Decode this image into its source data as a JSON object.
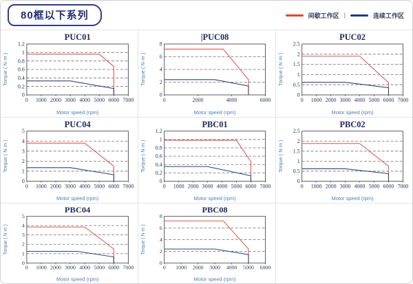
{
  "header": {
    "title": "80框以下系列",
    "legend": {
      "intermittent": "间歇工作区",
      "separator": "|",
      "continuous": "连续工作区",
      "intermittent_color": "#e8432a",
      "continuous_color": "#1f3d7a"
    }
  },
  "chart_data": [
    {
      "type": "line",
      "title": "PUC01",
      "title_prefix": "",
      "xlabel": "Motor speed (rpm)",
      "ylabel": "Torque ( N·m )",
      "xlim": [
        0,
        7000
      ],
      "xticks": [
        0,
        1000,
        2000,
        3000,
        4000,
        5000,
        6000,
        7000
      ],
      "ylim": [
        0,
        1.2
      ],
      "yticks": [
        0,
        0.2,
        0.4,
        0.6,
        0.8,
        1,
        1.2
      ],
      "grid": "horizontal-dashed",
      "series": [
        {
          "key": "intermittent",
          "name": "间歇工作区",
          "color": "#e2564a",
          "points": [
            [
              0,
              0.96
            ],
            [
              5000,
              0.96
            ],
            [
              6000,
              0.67
            ],
            [
              6000,
              0
            ]
          ]
        },
        {
          "key": "continuous",
          "name": "连续工作区",
          "color": "#2e4482",
          "points": [
            [
              0,
              0.33
            ],
            [
              3000,
              0.33
            ],
            [
              6000,
              0.15
            ],
            [
              6000,
              0
            ]
          ]
        }
      ]
    },
    {
      "type": "line",
      "title": "PUC08",
      "title_prefix": "|",
      "xlabel": "Motor speed (rpm)",
      "ylabel": "Torque ( N·m )",
      "xlim": [
        0,
        6000
      ],
      "xticks": [
        0,
        2000,
        4000,
        6000
      ],
      "ylim": [
        0,
        8
      ],
      "yticks": [
        0,
        2,
        4,
        6,
        8
      ],
      "grid": "horizontal-dashed",
      "series": [
        {
          "key": "intermittent",
          "name": "间歇工作区",
          "color": "#e2564a",
          "points": [
            [
              0,
              7.2
            ],
            [
              3500,
              7.2
            ],
            [
              5000,
              2.4
            ],
            [
              5000,
              0
            ]
          ]
        },
        {
          "key": "continuous",
          "name": "连续工作区",
          "color": "#2e4482",
          "points": [
            [
              0,
              2.4
            ],
            [
              3000,
              2.4
            ],
            [
              5000,
              1.4
            ],
            [
              5000,
              0
            ]
          ]
        }
      ]
    },
    {
      "type": "line",
      "title": "PUC02",
      "title_prefix": "",
      "xlabel": "Motor speed (rpm)",
      "ylabel": "Torque ( N·m )",
      "xlim": [
        0,
        7000
      ],
      "xticks": [
        0,
        1000,
        2000,
        3000,
        4000,
        5000,
        6000,
        7000
      ],
      "ylim": [
        0,
        2.5
      ],
      "yticks": [
        0,
        0.5,
        1,
        1.5,
        2,
        2.5
      ],
      "grid": "horizontal-dashed",
      "series": [
        {
          "key": "intermittent",
          "name": "间歇工作区",
          "color": "#e2564a",
          "points": [
            [
              0,
              1.9
            ],
            [
              4000,
              1.9
            ],
            [
              6000,
              0.6
            ],
            [
              6000,
              0
            ]
          ]
        },
        {
          "key": "continuous",
          "name": "连续工作区",
          "color": "#2e4482",
          "points": [
            [
              0,
              0.62
            ],
            [
              3000,
              0.62
            ],
            [
              6000,
              0.35
            ],
            [
              6000,
              0
            ]
          ]
        }
      ]
    },
    {
      "type": "line",
      "title": "PUC04",
      "title_prefix": "",
      "xlabel": "Motor speed (rpm)",
      "ylabel": "Torque ( N·m )",
      "xlim": [
        0,
        7000
      ],
      "xticks": [
        0,
        1000,
        2000,
        3000,
        4000,
        5000,
        6000,
        7000
      ],
      "ylim": [
        0,
        5
      ],
      "yticks": [
        0,
        1,
        2,
        3,
        4,
        5
      ],
      "grid": "horizontal-dashed",
      "series": [
        {
          "key": "intermittent",
          "name": "间歇工作区",
          "color": "#e2564a",
          "points": [
            [
              0,
              3.8
            ],
            [
              4000,
              3.8
            ],
            [
              6000,
              1.5
            ],
            [
              6000,
              0
            ]
          ]
        },
        {
          "key": "continuous",
          "name": "连续工作区",
          "color": "#2e4482",
          "points": [
            [
              0,
              1.35
            ],
            [
              3000,
              1.35
            ],
            [
              6000,
              0.65
            ],
            [
              6000,
              0
            ]
          ]
        }
      ]
    },
    {
      "type": "line",
      "title": "PBC01",
      "title_prefix": "",
      "xlabel": "Motor speed (rpm)",
      "ylabel": "Torque ( N·m )",
      "xlim": [
        0,
        7000
      ],
      "xticks": [
        0,
        1000,
        2000,
        3000,
        4000,
        5000,
        6000,
        7000
      ],
      "ylim": [
        0,
        1.2
      ],
      "yticks": [
        0,
        0.2,
        0.4,
        0.6,
        0.8,
        1,
        1.2
      ],
      "grid": "horizontal-dashed",
      "series": [
        {
          "key": "intermittent",
          "name": "间歇工作区",
          "color": "#e2564a",
          "points": [
            [
              0,
              0.98
            ],
            [
              5000,
              0.98
            ],
            [
              6000,
              0.47
            ],
            [
              6000,
              0
            ]
          ]
        },
        {
          "key": "continuous",
          "name": "连续工作区",
          "color": "#2e4482",
          "points": [
            [
              0,
              0.35
            ],
            [
              3000,
              0.35
            ],
            [
              6000,
              0.13
            ],
            [
              6000,
              0
            ]
          ]
        }
      ]
    },
    {
      "type": "line",
      "title": "PBC02",
      "title_prefix": "",
      "xlabel": "Motor speed (rpm)",
      "ylabel": "Torque ( N·m )",
      "xlim": [
        0,
        7000
      ],
      "xticks": [
        0,
        1000,
        2000,
        3000,
        4000,
        5000,
        6000,
        7000
      ],
      "ylim": [
        0,
        2.5
      ],
      "yticks": [
        0,
        0.5,
        1,
        1.5,
        2,
        2.5
      ],
      "grid": "horizontal-dashed",
      "series": [
        {
          "key": "intermittent",
          "name": "间歇工作区",
          "color": "#e2564a",
          "points": [
            [
              0,
              1.88
            ],
            [
              4000,
              1.88
            ],
            [
              6000,
              0.75
            ],
            [
              6000,
              0
            ]
          ]
        },
        {
          "key": "continuous",
          "name": "连续工作区",
          "color": "#2e4482",
          "points": [
            [
              0,
              0.62
            ],
            [
              3000,
              0.62
            ],
            [
              6000,
              0.38
            ],
            [
              6000,
              0
            ]
          ]
        }
      ]
    },
    {
      "type": "line",
      "title": "PBC04",
      "title_prefix": "",
      "xlabel": "Motor speed (rpm)",
      "ylabel": "Torque ( N·m )",
      "xlim": [
        0,
        7000
      ],
      "xticks": [
        0,
        1000,
        2000,
        3000,
        4000,
        5000,
        6000,
        7000
      ],
      "ylim": [
        0,
        5
      ],
      "yticks": [
        0,
        1,
        2,
        3,
        4,
        5
      ],
      "grid": "horizontal-dashed",
      "series": [
        {
          "key": "intermittent",
          "name": "间歇工作区",
          "color": "#e2564a",
          "points": [
            [
              0,
              3.85
            ],
            [
              4000,
              3.85
            ],
            [
              6000,
              1.5
            ],
            [
              6000,
              0
            ]
          ]
        },
        {
          "key": "continuous",
          "name": "连续工作区",
          "color": "#2e4482",
          "points": [
            [
              0,
              1.25
            ],
            [
              3500,
              1.25
            ],
            [
              6000,
              0.65
            ],
            [
              6000,
              0
            ]
          ]
        }
      ]
    },
    {
      "type": "line",
      "title": "PBC08",
      "title_prefix": "",
      "xlabel": "Motor speed (rpm)",
      "ylabel": "Torque ( N·m )",
      "xlim": [
        0,
        6000
      ],
      "xticks": [
        0,
        1000,
        2000,
        3000,
        4000,
        5000,
        6000
      ],
      "ylim": [
        0,
        8
      ],
      "yticks": [
        0,
        2,
        4,
        6,
        8
      ],
      "grid": "horizontal-dashed",
      "series": [
        {
          "key": "intermittent",
          "name": "间歇工作区",
          "color": "#e2564a",
          "points": [
            [
              0,
              7.2
            ],
            [
              3500,
              7.2
            ],
            [
              5000,
              2.4
            ],
            [
              5000,
              0
            ]
          ]
        },
        {
          "key": "continuous",
          "name": "连续工作区",
          "color": "#2e4482",
          "points": [
            [
              0,
              2.4
            ],
            [
              3000,
              2.4
            ],
            [
              5000,
              1.45
            ],
            [
              5000,
              0
            ]
          ]
        }
      ]
    }
  ]
}
